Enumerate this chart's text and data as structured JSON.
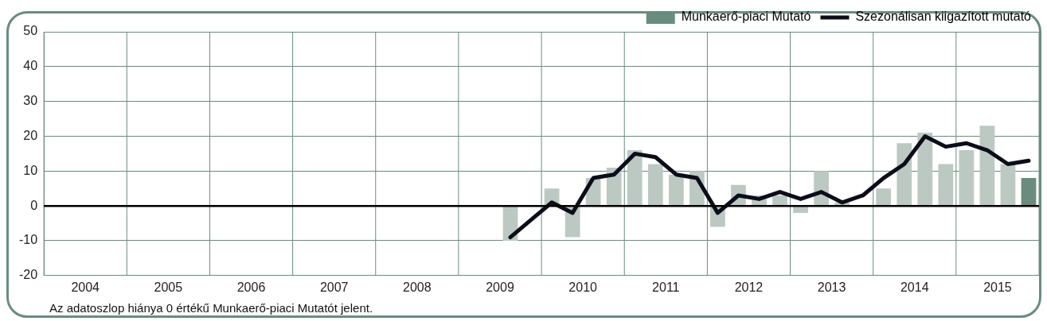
{
  "chart_data": {
    "type": "bar",
    "x": [
      2009.625,
      2009.875,
      2010.125,
      2010.375,
      2010.625,
      2010.875,
      2011.125,
      2011.375,
      2011.625,
      2011.875,
      2012.125,
      2012.375,
      2012.625,
      2012.875,
      2013.125,
      2013.375,
      2013.625,
      2013.875,
      2014.125,
      2014.375,
      2014.625,
      2014.875,
      2015.125,
      2015.375,
      2015.625,
      2015.875
    ],
    "series": [
      {
        "name": "Munkaerő-piaci Mutató",
        "color": "#6a8c7e",
        "colors": [
          "#bcc9c3",
          "#bcc9c3",
          "#bcc9c3",
          "#bcc9c3",
          "#bcc9c3",
          "#bcc9c3",
          "#bcc9c3",
          "#bcc9c3",
          "#bcc9c3",
          "#bcc9c3",
          "#bcc9c3",
          "#bcc9c3",
          "#bcc9c3",
          "#bcc9c3",
          "#bcc9c3",
          "#bcc9c3",
          "#bcc9c3",
          "#bcc9c3",
          "#bcc9c3",
          "#bcc9c3",
          "#bcc9c3",
          "#bcc9c3",
          "#bcc9c3",
          "#bcc9c3",
          "#bcc9c3",
          "#6a8c7e"
        ],
        "values": [
          -10,
          0,
          5,
          -9,
          8,
          11,
          16,
          12,
          9,
          10,
          -6,
          6,
          3,
          3,
          -2,
          10,
          1,
          0,
          5,
          18,
          21,
          12,
          16,
          23,
          12,
          8
        ]
      },
      {
        "name": "Szezonálisan kiigazított mutató",
        "type": "line",
        "color": "#0d0d1a",
        "values": [
          -9,
          -4,
          1,
          -2,
          8,
          9,
          15,
          14,
          9,
          8,
          -2,
          3,
          2,
          4,
          2,
          4,
          1,
          3,
          8,
          12,
          20,
          17,
          18,
          16,
          12,
          13
        ]
      }
    ],
    "xlim": [
      2004,
      2016
    ],
    "xticks": [
      {
        "value": 2004,
        "label": null
      },
      {
        "value": 2004.5,
        "label": "2004"
      },
      {
        "value": 2005,
        "label": null
      },
      {
        "value": 2005.5,
        "label": "2005"
      },
      {
        "value": 2006,
        "label": null
      },
      {
        "value": 2006.5,
        "label": "2006"
      },
      {
        "value": 2007,
        "label": null
      },
      {
        "value": 2007.5,
        "label": "2007"
      },
      {
        "value": 2008,
        "label": null
      },
      {
        "value": 2008.5,
        "label": "2008"
      },
      {
        "value": 2009,
        "label": null
      },
      {
        "value": 2009.5,
        "label": "2009"
      },
      {
        "value": 2010,
        "label": null
      },
      {
        "value": 2010.5,
        "label": "2010"
      },
      {
        "value": 2011,
        "label": null
      },
      {
        "value": 2011.5,
        "label": "2011"
      },
      {
        "value": 2012,
        "label": null
      },
      {
        "value": 2012.5,
        "label": "2012"
      },
      {
        "value": 2013,
        "label": null
      },
      {
        "value": 2013.5,
        "label": "2013"
      },
      {
        "value": 2014,
        "label": null
      },
      {
        "value": 2014.5,
        "label": "2014"
      },
      {
        "value": 2015,
        "label": null
      },
      {
        "value": 2015.5,
        "label": "2015"
      },
      {
        "value": 2016,
        "label": null
      }
    ],
    "ylim": [
      -20,
      50
    ],
    "yticks": [
      -20,
      -10,
      0,
      10,
      20,
      30,
      40,
      50
    ],
    "grid": true,
    "legend": "top right",
    "marker": "none",
    "line_style": "solid",
    "ref_lines": [
      {
        "axis": "y",
        "value": 0,
        "color": "#000000"
      }
    ],
    "annotations": [
      "Az adatoszlop hiánya 0 értékű Munkaerő-piaci Mutatót jelent."
    ]
  }
}
